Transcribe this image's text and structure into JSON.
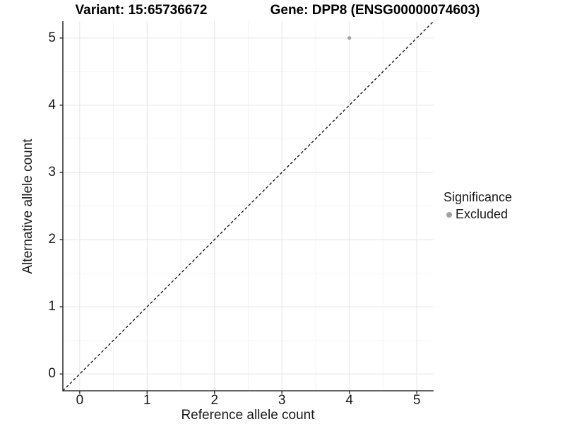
{
  "titles": {
    "left": "Variant: 15:65736672",
    "right": "Gene: DPP8 (ENSG00000074603)"
  },
  "chart_data": {
    "type": "scatter",
    "title": "Variant: 15:65736672  /  Gene: DPP8 (ENSG00000074603)",
    "xlabel": "Reference allele count",
    "ylabel": "Alternative allele count",
    "xlim": [
      -0.25,
      5.25
    ],
    "ylim": [
      -0.25,
      5.25
    ],
    "x_ticks": [
      0,
      1,
      2,
      3,
      4,
      5
    ],
    "y_ticks": [
      0,
      1,
      2,
      3,
      4,
      5
    ],
    "x_minor_ticks": [
      0.5,
      1.5,
      2.5,
      3.5,
      4.5
    ],
    "y_minor_ticks": [
      0.5,
      1.5,
      2.5,
      3.5,
      4.5
    ],
    "grid": true,
    "series": [
      {
        "name": "Excluded",
        "color": "#a3a3a3",
        "point_radius": 2.6,
        "points": [
          {
            "x": 4,
            "y": 5
          }
        ]
      }
    ],
    "reference_line": {
      "slope": 1,
      "intercept": 0,
      "style": "dashed",
      "color": "#000000"
    },
    "legend": {
      "title": "Significance",
      "position": "right",
      "entries": [
        {
          "label": "Excluded",
          "color": "#a3a3a3"
        }
      ]
    },
    "colors": {
      "background": "#ffffff",
      "grid_major": "#e7e7e7",
      "grid_minor": "#f4f4f4",
      "axis_line": "#333333",
      "tick_mark": "#333333",
      "tick_text": "#1a1a1a"
    }
  }
}
